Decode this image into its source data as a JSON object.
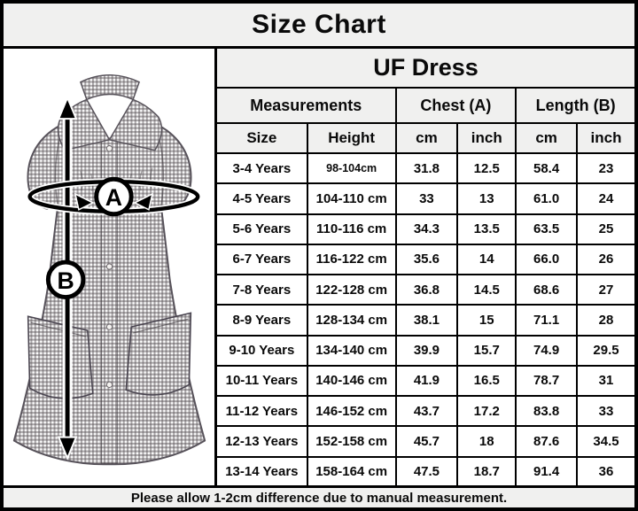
{
  "footer_note": "Please allow 1-2cm difference due to manual measurement.",
  "diagram": {
    "chest_label": "A",
    "length_label": "B"
  },
  "colors": {
    "band_bg": "#f0f0ef",
    "cell_bg": "#ffffff",
    "border": "#000000",
    "gingham_dark": "#5a5458"
  },
  "chart_data": {
    "type": "table",
    "title": "Size Chart",
    "subtitle": "UF Dress",
    "column_groups": [
      "Measurements",
      "Chest (A)",
      "Length (B)"
    ],
    "columns": [
      "Size",
      "Height",
      "cm",
      "inch",
      "cm",
      "inch"
    ],
    "rows": [
      [
        "3-4 Years",
        "98-104cm",
        "31.8",
        "12.5",
        "58.4",
        "23"
      ],
      [
        "4-5 Years",
        "104-110 cm",
        "33",
        "13",
        "61.0",
        "24"
      ],
      [
        "5-6 Years",
        "110-116 cm",
        "34.3",
        "13.5",
        "63.5",
        "25"
      ],
      [
        "6-7 Years",
        "116-122 cm",
        "35.6",
        "14",
        "66.0",
        "26"
      ],
      [
        "7-8 Years",
        "122-128 cm",
        "36.8",
        "14.5",
        "68.6",
        "27"
      ],
      [
        "8-9 Years",
        "128-134 cm",
        "38.1",
        "15",
        "71.1",
        "28"
      ],
      [
        "9-10 Years",
        "134-140 cm",
        "39.9",
        "15.7",
        "74.9",
        "29.5"
      ],
      [
        "10-11 Years",
        "140-146 cm",
        "41.9",
        "16.5",
        "78.7",
        "31"
      ],
      [
        "11-12 Years",
        "146-152 cm",
        "43.7",
        "17.2",
        "83.8",
        "33"
      ],
      [
        "12-13 Years",
        "152-158 cm",
        "45.7",
        "18",
        "87.6",
        "34.5"
      ],
      [
        "13-14 Years",
        "158-164 cm",
        "47.5",
        "18.7",
        "91.4",
        "36"
      ]
    ]
  }
}
